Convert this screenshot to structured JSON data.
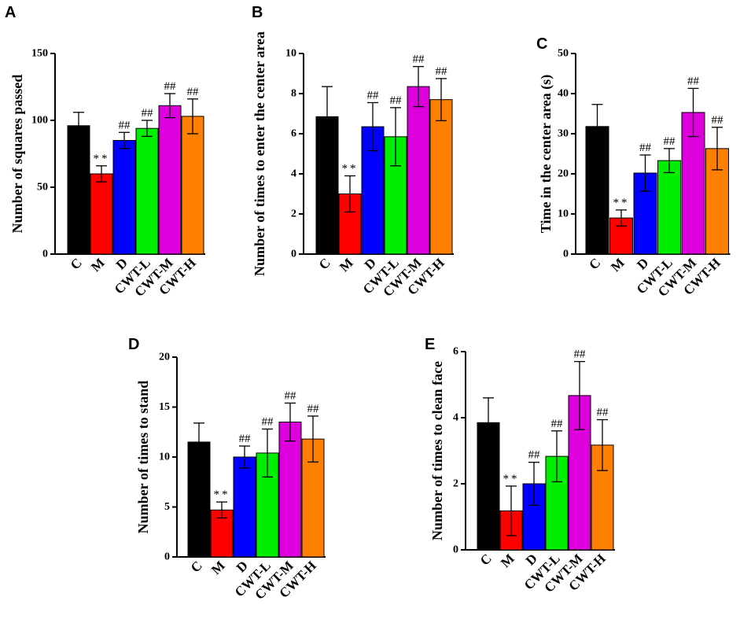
{
  "chart_data": [
    {
      "id": "A",
      "type": "bar",
      "panel_label": "A",
      "ylabel": "Number of squares passed",
      "ylim": [
        0,
        150
      ],
      "yticks": [
        0,
        50,
        100,
        150
      ],
      "categories": [
        "C",
        "M",
        "D",
        "CWT-L",
        "CWT-M",
        "CWT-H"
      ],
      "values": [
        96,
        60,
        85,
        94,
        111,
        103
      ],
      "errors": [
        10,
        6,
        6,
        6,
        9,
        13
      ],
      "annotations": [
        "",
        "**",
        "##",
        "##",
        "##",
        "##"
      ]
    },
    {
      "id": "B",
      "type": "bar",
      "panel_label": "B",
      "ylabel": "Number of times to enter the center area",
      "ylim": [
        0,
        10
      ],
      "yticks": [
        0,
        2,
        4,
        6,
        8,
        10
      ],
      "categories": [
        "C",
        "M",
        "D",
        "CWT-L",
        "CWT-M",
        "CWT-H"
      ],
      "values": [
        6.85,
        3.0,
        6.35,
        5.85,
        8.35,
        7.7
      ],
      "errors": [
        1.5,
        0.9,
        1.2,
        1.45,
        1.0,
        1.05
      ],
      "annotations": [
        "",
        "**",
        "##",
        "##",
        "##",
        "##"
      ]
    },
    {
      "id": "C",
      "type": "bar",
      "panel_label": "C",
      "ylabel": "Time in the center area (s)",
      "ylim": [
        0,
        50
      ],
      "yticks": [
        0,
        10,
        20,
        30,
        40,
        50
      ],
      "categories": [
        "C",
        "M",
        "D",
        "CWT-L",
        "CWT-M",
        "CWT-H"
      ],
      "values": [
        31.8,
        9.0,
        20.2,
        23.3,
        35.3,
        26.3
      ],
      "errors": [
        5.5,
        2.0,
        4.5,
        3.0,
        6.0,
        5.3
      ],
      "annotations": [
        "",
        "**",
        "##",
        "##",
        "##",
        "##"
      ]
    },
    {
      "id": "D",
      "type": "bar",
      "panel_label": "D",
      "ylabel": "Number of times to stand",
      "ylim": [
        0,
        20
      ],
      "yticks": [
        0,
        5,
        10,
        15,
        20
      ],
      "categories": [
        "C",
        "M",
        "D",
        "CWT-L",
        "CWT-M",
        "CWT-H"
      ],
      "values": [
        11.5,
        4.7,
        10.0,
        10.4,
        13.5,
        11.8
      ],
      "errors": [
        1.9,
        0.8,
        1.1,
        2.4,
        1.9,
        2.3
      ],
      "annotations": [
        "",
        "**",
        "##",
        "##",
        "##",
        "##"
      ]
    },
    {
      "id": "E",
      "type": "bar",
      "panel_label": "E",
      "ylabel": "Number of times to clean face",
      "ylim": [
        0,
        6
      ],
      "yticks": [
        0,
        2,
        4,
        6
      ],
      "categories": [
        "C",
        "M",
        "D",
        "CWT-L",
        "CWT-M",
        "CWT-H"
      ],
      "values": [
        3.85,
        1.18,
        2.0,
        2.83,
        4.67,
        3.17
      ],
      "errors": [
        0.75,
        0.75,
        0.65,
        0.77,
        1.03,
        0.77
      ],
      "annotations": [
        "",
        "**",
        "##",
        "##",
        "##",
        "##"
      ]
    }
  ],
  "bar_colors": [
    "#000000",
    "#ff0000",
    "#0000ff",
    "#00ee00",
    "#dd00dd",
    "#ff8000"
  ]
}
